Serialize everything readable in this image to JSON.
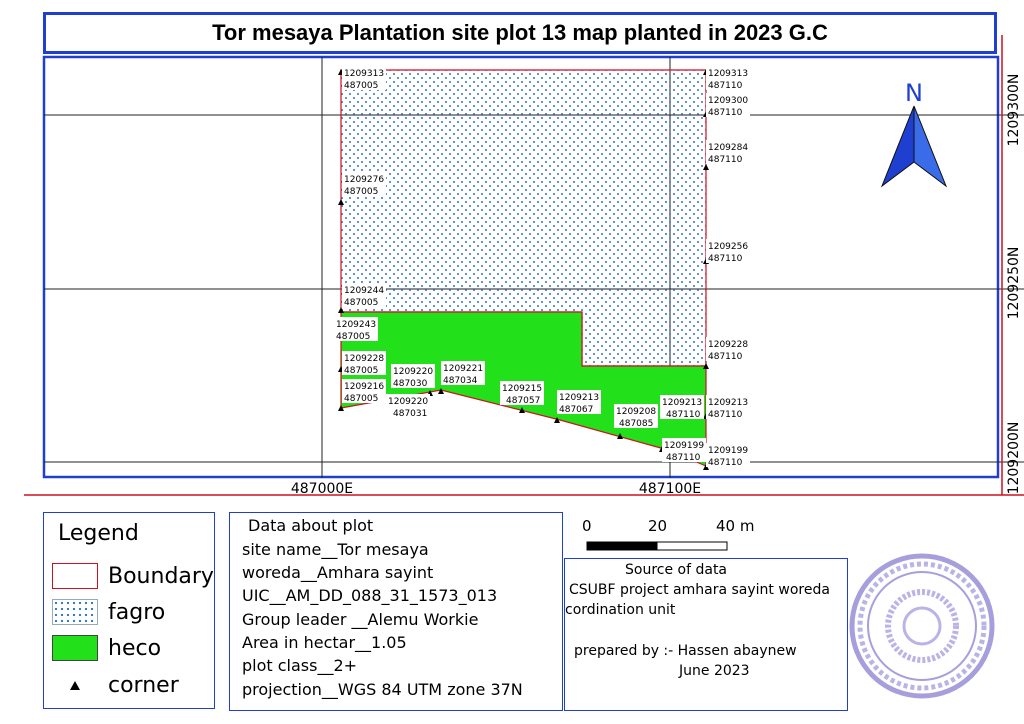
{
  "title": "Tor mesaya Plantation site plot 13 map planted in 2023 G.C",
  "map": {
    "north_label": "N",
    "y_axis_labels": [
      "1209300N",
      "1209250N",
      "1209200N"
    ],
    "x_axis_labels": [
      "487000E",
      "487100E"
    ],
    "corners": [
      {
        "n": "1209313",
        "e": "487005"
      },
      {
        "n": "1209313",
        "e": "487110"
      },
      {
        "n": "1209300",
        "e": "487110"
      },
      {
        "n": "1209284",
        "e": "487110"
      },
      {
        "n": "1209276",
        "e": "487005"
      },
      {
        "n": "1209256",
        "e": "487110"
      },
      {
        "n": "1209244",
        "e": "487005"
      },
      {
        "n": "1209243",
        "e": "487005"
      },
      {
        "n": "1209228",
        "e": "487110"
      },
      {
        "n": "1209228",
        "e": "487005"
      },
      {
        "n": "1209220",
        "e": "487030"
      },
      {
        "n": "1209221",
        "e": "487034"
      },
      {
        "n": "1209216",
        "e": "487005"
      },
      {
        "n": "1209220",
        "e": "487031"
      },
      {
        "n": "1209215",
        "e": "487057"
      },
      {
        "n": "1209213",
        "e": "487067"
      },
      {
        "n": "1209208",
        "e": "487085"
      },
      {
        "n": "1209213",
        "e": "487110"
      },
      {
        "n": "1209213",
        "e": "487110"
      },
      {
        "n": "1209199",
        "e": "487110"
      },
      {
        "n": "1209199",
        "e": "487110"
      }
    ]
  },
  "legend": {
    "title": "Legend",
    "items": [
      "Boundary",
      "fagro",
      "heco",
      "corner"
    ]
  },
  "plot_data": {
    "heading": "Data about plot",
    "lines": [
      "site name__Tor mesaya",
      "woreda__Amhara sayint",
      "UIC__AM_DD_088_31_1573_013",
      "Group leader __Alemu Workie",
      "Area in hectar__1.05",
      "plot class__2+",
      "projection__WGS 84 UTM zone 37N"
    ]
  },
  "scale": {
    "ticks": [
      "0",
      "20",
      "40 m"
    ]
  },
  "source": {
    "heading": "Source of data",
    "line1": "CSUBF project amhara sayint woreda",
    "line2": "cordination unit",
    "prepared": "prepared by :- Hassen abaynew",
    "date": "June 2023"
  },
  "colors": {
    "frame": "#1f3fd0",
    "boundary": "#d01020",
    "fagro_dots": "#2a74c8",
    "heco": "#22e01a"
  }
}
